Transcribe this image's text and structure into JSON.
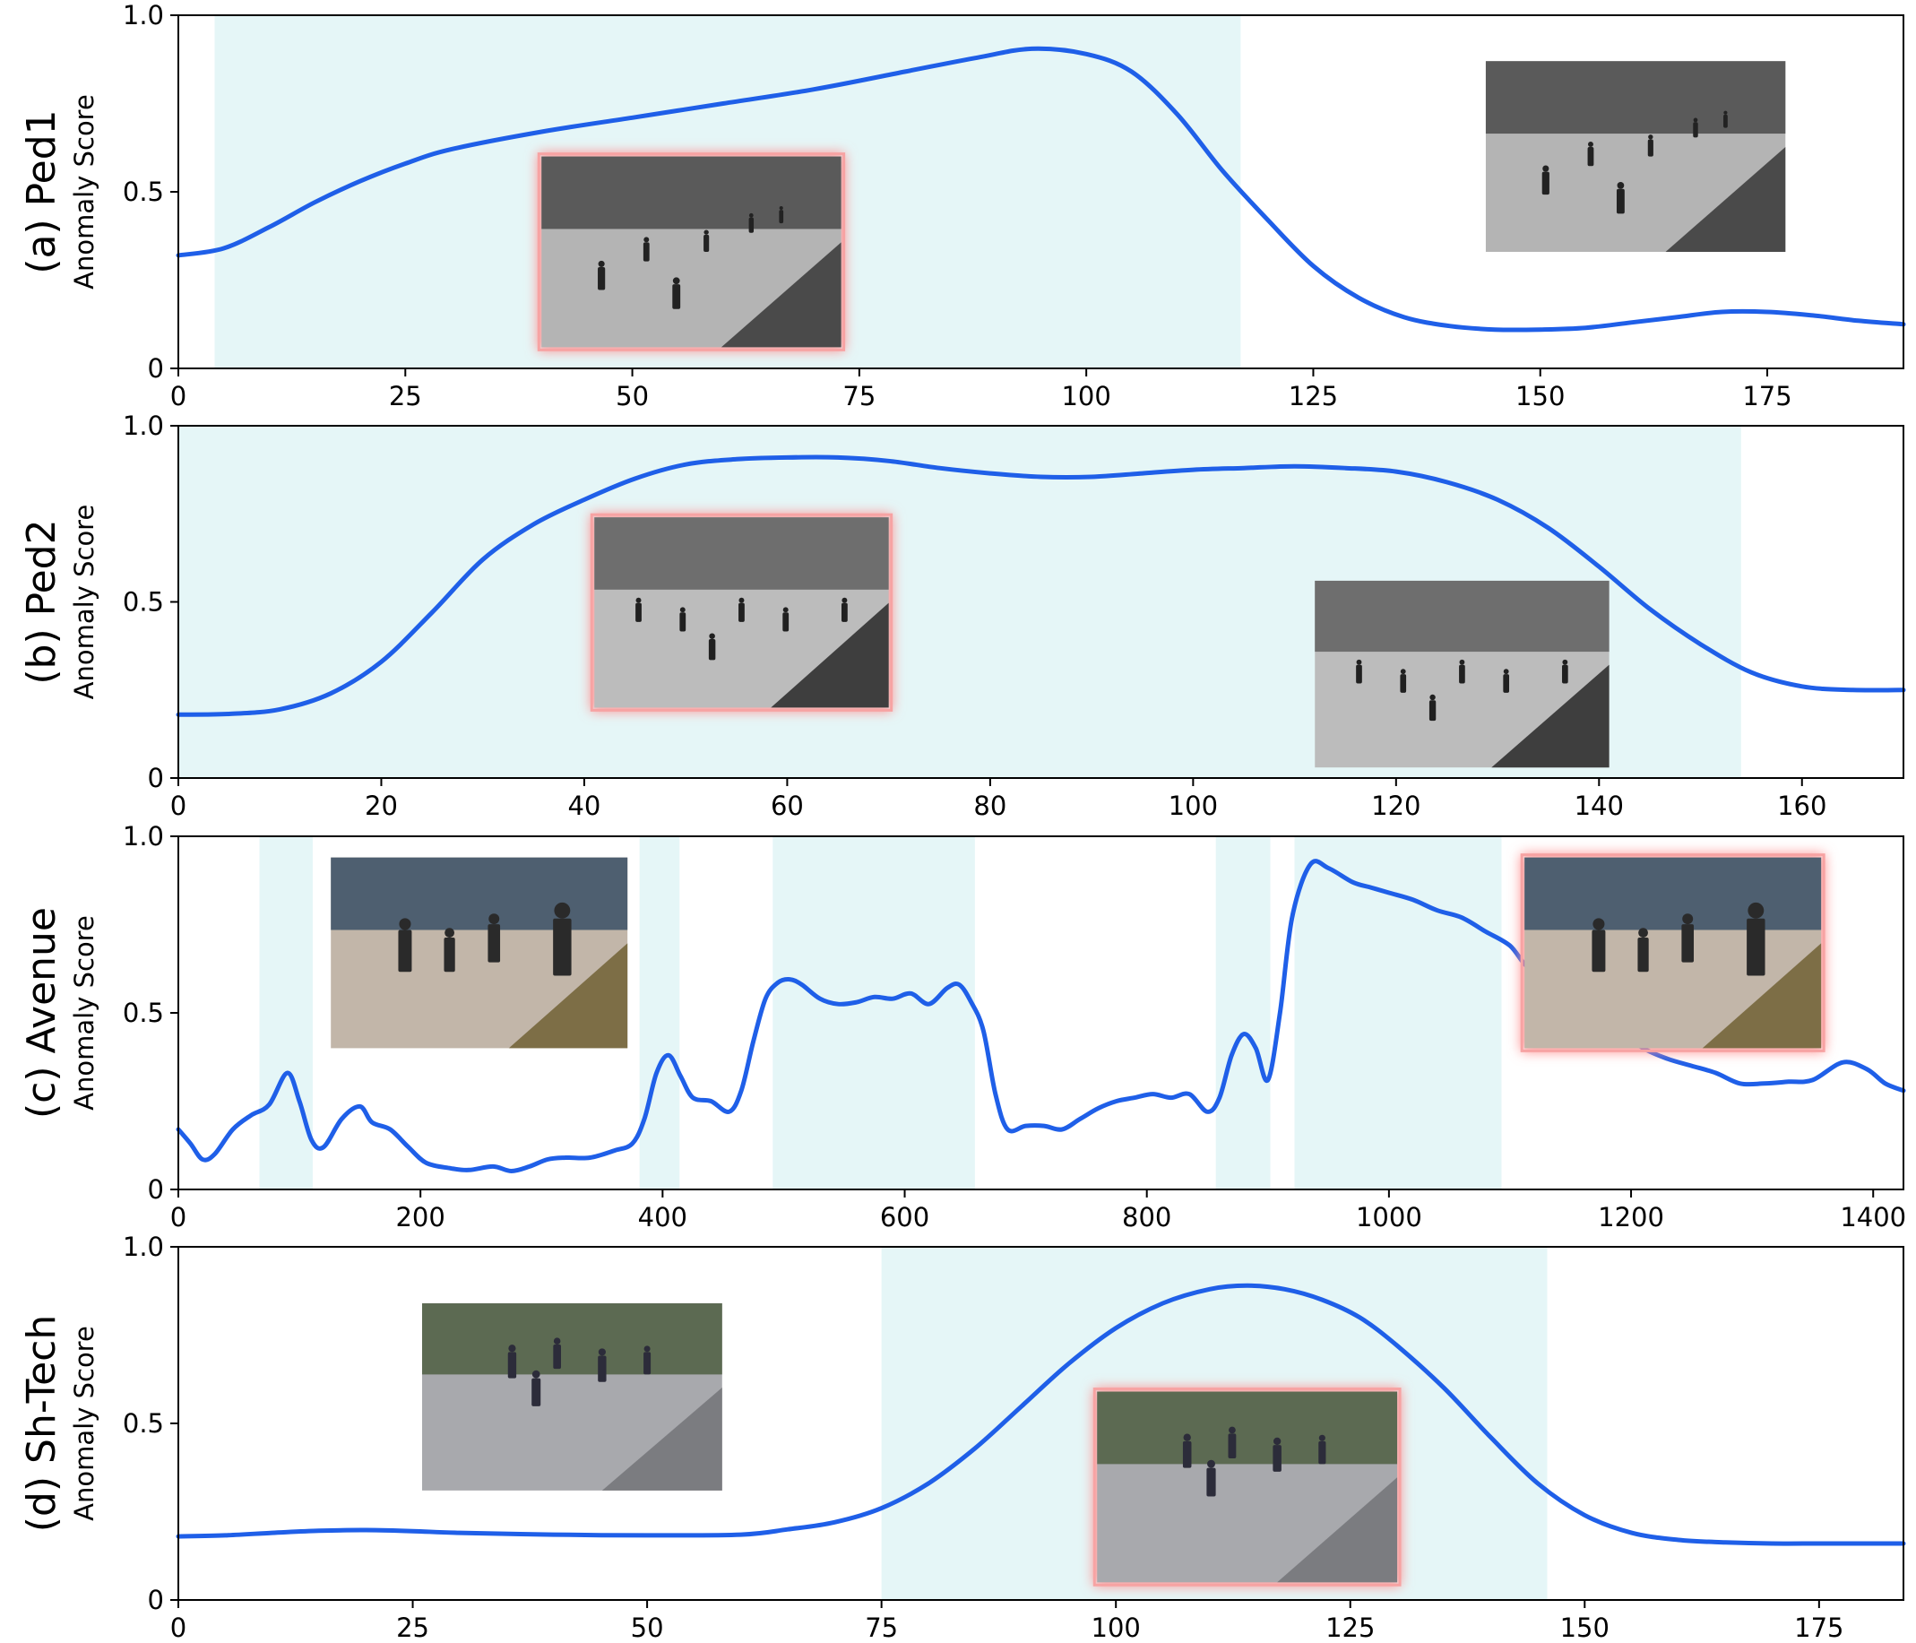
{
  "chart_data": [
    {
      "type": "line",
      "panel_label": "(a) Ped1",
      "ylabel": "Anomaly Score",
      "xlim": [
        0,
        190
      ],
      "ylim": [
        0,
        1.0
      ],
      "xticks": [
        0,
        25,
        50,
        75,
        100,
        125,
        150,
        175
      ],
      "yticks": [
        0,
        0.5,
        1.0
      ],
      "ytick_labels": [
        "0",
        "0.5",
        "1.0"
      ],
      "shaded_ranges": [
        [
          4,
          117
        ]
      ],
      "line_color": "#1f5fe8",
      "shade_color": "#e5f6f7",
      "insets": [
        {
          "kind": "anomalous-frame",
          "highlighted": true,
          "x_range": [
            40,
            73
          ],
          "y_range": [
            0.06,
            0.6
          ]
        },
        {
          "kind": "normal-frame",
          "highlighted": false,
          "x_range": [
            144,
            177
          ],
          "y_range": [
            0.33,
            0.87
          ]
        }
      ],
      "series": [
        {
          "x": [
            0,
            5,
            10,
            15,
            20,
            25,
            30,
            40,
            50,
            60,
            70,
            80,
            88,
            94,
            100,
            105,
            110,
            115,
            120,
            125,
            130,
            135,
            140,
            145,
            150,
            155,
            160,
            165,
            170,
            175,
            180,
            185,
            190
          ],
          "y": [
            0.32,
            0.34,
            0.4,
            0.47,
            0.53,
            0.58,
            0.62,
            0.67,
            0.71,
            0.75,
            0.79,
            0.84,
            0.88,
            0.905,
            0.89,
            0.84,
            0.72,
            0.56,
            0.42,
            0.29,
            0.2,
            0.145,
            0.12,
            0.11,
            0.11,
            0.115,
            0.13,
            0.145,
            0.16,
            0.16,
            0.15,
            0.135,
            0.125
          ]
        }
      ]
    },
    {
      "type": "line",
      "panel_label": "(b) Ped2",
      "ylabel": "Anomaly Score",
      "xlim": [
        0,
        170
      ],
      "ylim": [
        0,
        1.0
      ],
      "xticks": [
        0,
        20,
        40,
        60,
        80,
        100,
        120,
        140,
        160
      ],
      "yticks": [
        0,
        0.5,
        1.0
      ],
      "ytick_labels": [
        "0",
        "0.5",
        "1.0"
      ],
      "shaded_ranges": [
        [
          0,
          154
        ]
      ],
      "line_color": "#1f5fe8",
      "shade_color": "#e5f6f7",
      "insets": [
        {
          "kind": "anomalous-frame",
          "highlighted": true,
          "x_range": [
            41,
            70
          ],
          "y_range": [
            0.2,
            0.74
          ]
        },
        {
          "kind": "normal-frame",
          "highlighted": false,
          "x_range": [
            112,
            141
          ],
          "y_range": [
            0.03,
            0.56
          ]
        }
      ],
      "series": [
        {
          "x": [
            0,
            5,
            10,
            15,
            20,
            25,
            30,
            35,
            40,
            45,
            50,
            55,
            60,
            65,
            70,
            75,
            80,
            85,
            90,
            95,
            100,
            105,
            110,
            115,
            120,
            125,
            130,
            135,
            140,
            145,
            150,
            155,
            160,
            165,
            170
          ],
          "y": [
            0.18,
            0.182,
            0.195,
            0.24,
            0.33,
            0.47,
            0.62,
            0.72,
            0.79,
            0.85,
            0.89,
            0.905,
            0.91,
            0.91,
            0.9,
            0.88,
            0.865,
            0.855,
            0.855,
            0.865,
            0.875,
            0.88,
            0.885,
            0.88,
            0.87,
            0.84,
            0.79,
            0.71,
            0.6,
            0.48,
            0.38,
            0.3,
            0.26,
            0.25,
            0.25
          ]
        }
      ]
    },
    {
      "type": "line",
      "panel_label": "(c) Avenue",
      "ylabel": "Anomaly Score",
      "xlim": [
        0,
        1425
      ],
      "ylim": [
        0,
        1.0
      ],
      "xticks": [
        0,
        200,
        400,
        600,
        800,
        1000,
        1200,
        1400
      ],
      "yticks": [
        0,
        0.5,
        1.0
      ],
      "ytick_labels": [
        "0",
        "0.5",
        "1.0"
      ],
      "shaded_ranges": [
        [
          67,
          111
        ],
        [
          381,
          414
        ],
        [
          491,
          658
        ],
        [
          857,
          902
        ],
        [
          922,
          1093
        ]
      ],
      "line_color": "#1f5fe8",
      "shade_color": "#e5f6f7",
      "insets": [
        {
          "kind": "normal-frame",
          "highlighted": false,
          "x_range": [
            126,
            371
          ],
          "y_range": [
            0.4,
            0.94
          ]
        },
        {
          "kind": "anomalous-frame",
          "highlighted": true,
          "x_range": [
            1112,
            1357
          ],
          "y_range": [
            0.4,
            0.94
          ]
        }
      ],
      "series": [
        {
          "x": [
            0,
            10,
            20,
            30,
            45,
            60,
            75,
            90,
            100,
            110,
            120,
            135,
            150,
            160,
            175,
            190,
            205,
            225,
            240,
            260,
            275,
            290,
            305,
            320,
            340,
            360,
            375,
            385,
            395,
            405,
            415,
            425,
            440,
            455,
            465,
            475,
            485,
            495,
            505,
            515,
            530,
            545,
            560,
            575,
            590,
            605,
            620,
            635,
            645,
            655,
            665,
            675,
            685,
            700,
            715,
            730,
            745,
            760,
            775,
            790,
            805,
            820,
            835,
            850,
            860,
            870,
            880,
            890,
            900,
            910,
            920,
            935,
            950,
            970,
            985,
            1000,
            1020,
            1040,
            1060,
            1080,
            1100,
            1115,
            1130,
            1150,
            1170,
            1190,
            1210,
            1230,
            1250,
            1270,
            1290,
            1310,
            1330,
            1350,
            1375,
            1395,
            1410,
            1425
          ],
          "y": [
            0.17,
            0.13,
            0.085,
            0.1,
            0.17,
            0.21,
            0.24,
            0.33,
            0.25,
            0.14,
            0.12,
            0.2,
            0.235,
            0.19,
            0.17,
            0.12,
            0.075,
            0.06,
            0.055,
            0.065,
            0.052,
            0.065,
            0.085,
            0.09,
            0.09,
            0.11,
            0.13,
            0.2,
            0.33,
            0.38,
            0.32,
            0.26,
            0.25,
            0.22,
            0.28,
            0.42,
            0.54,
            0.585,
            0.595,
            0.58,
            0.54,
            0.525,
            0.53,
            0.545,
            0.54,
            0.555,
            0.525,
            0.57,
            0.58,
            0.53,
            0.45,
            0.27,
            0.17,
            0.18,
            0.18,
            0.17,
            0.2,
            0.23,
            0.25,
            0.26,
            0.27,
            0.26,
            0.27,
            0.22,
            0.26,
            0.38,
            0.44,
            0.4,
            0.31,
            0.5,
            0.77,
            0.92,
            0.91,
            0.87,
            0.855,
            0.84,
            0.82,
            0.79,
            0.77,
            0.73,
            0.69,
            0.63,
            0.64,
            0.6,
            0.53,
            0.45,
            0.4,
            0.37,
            0.35,
            0.33,
            0.3,
            0.3,
            0.305,
            0.31,
            0.36,
            0.34,
            0.3,
            0.28
          ]
        }
      ]
    },
    {
      "type": "line",
      "panel_label": "(d) Sh-Tech",
      "ylabel": "Anomaly Score",
      "xlim": [
        0,
        184
      ],
      "ylim": [
        0,
        1.0
      ],
      "xticks": [
        0,
        25,
        50,
        75,
        100,
        125,
        150,
        175
      ],
      "yticks": [
        0,
        0.5,
        1.0
      ],
      "ytick_labels": [
        "0",
        "0.5",
        "1.0"
      ],
      "shaded_ranges": [
        [
          75,
          146
        ]
      ],
      "line_color": "#1f5fe8",
      "shade_color": "#e5f6f7",
      "insets": [
        {
          "kind": "normal-frame",
          "highlighted": false,
          "x_range": [
            26,
            58
          ],
          "y_range": [
            0.31,
            0.84
          ]
        },
        {
          "kind": "anomalous-frame",
          "highlighted": true,
          "x_range": [
            98,
            130
          ],
          "y_range": [
            0.05,
            0.59
          ]
        }
      ],
      "series": [
        {
          "x": [
            0,
            5,
            10,
            15,
            20,
            25,
            30,
            40,
            50,
            60,
            65,
            70,
            75,
            80,
            85,
            90,
            95,
            100,
            105,
            110,
            114,
            118,
            122,
            126,
            130,
            135,
            140,
            145,
            150,
            155,
            160,
            165,
            170,
            175,
            180,
            184
          ],
          "y": [
            0.18,
            0.183,
            0.19,
            0.196,
            0.198,
            0.195,
            0.19,
            0.185,
            0.183,
            0.185,
            0.2,
            0.22,
            0.26,
            0.33,
            0.43,
            0.55,
            0.67,
            0.77,
            0.84,
            0.88,
            0.89,
            0.88,
            0.85,
            0.8,
            0.72,
            0.6,
            0.46,
            0.33,
            0.24,
            0.19,
            0.17,
            0.163,
            0.16,
            0.16,
            0.16,
            0.16
          ]
        }
      ]
    }
  ]
}
